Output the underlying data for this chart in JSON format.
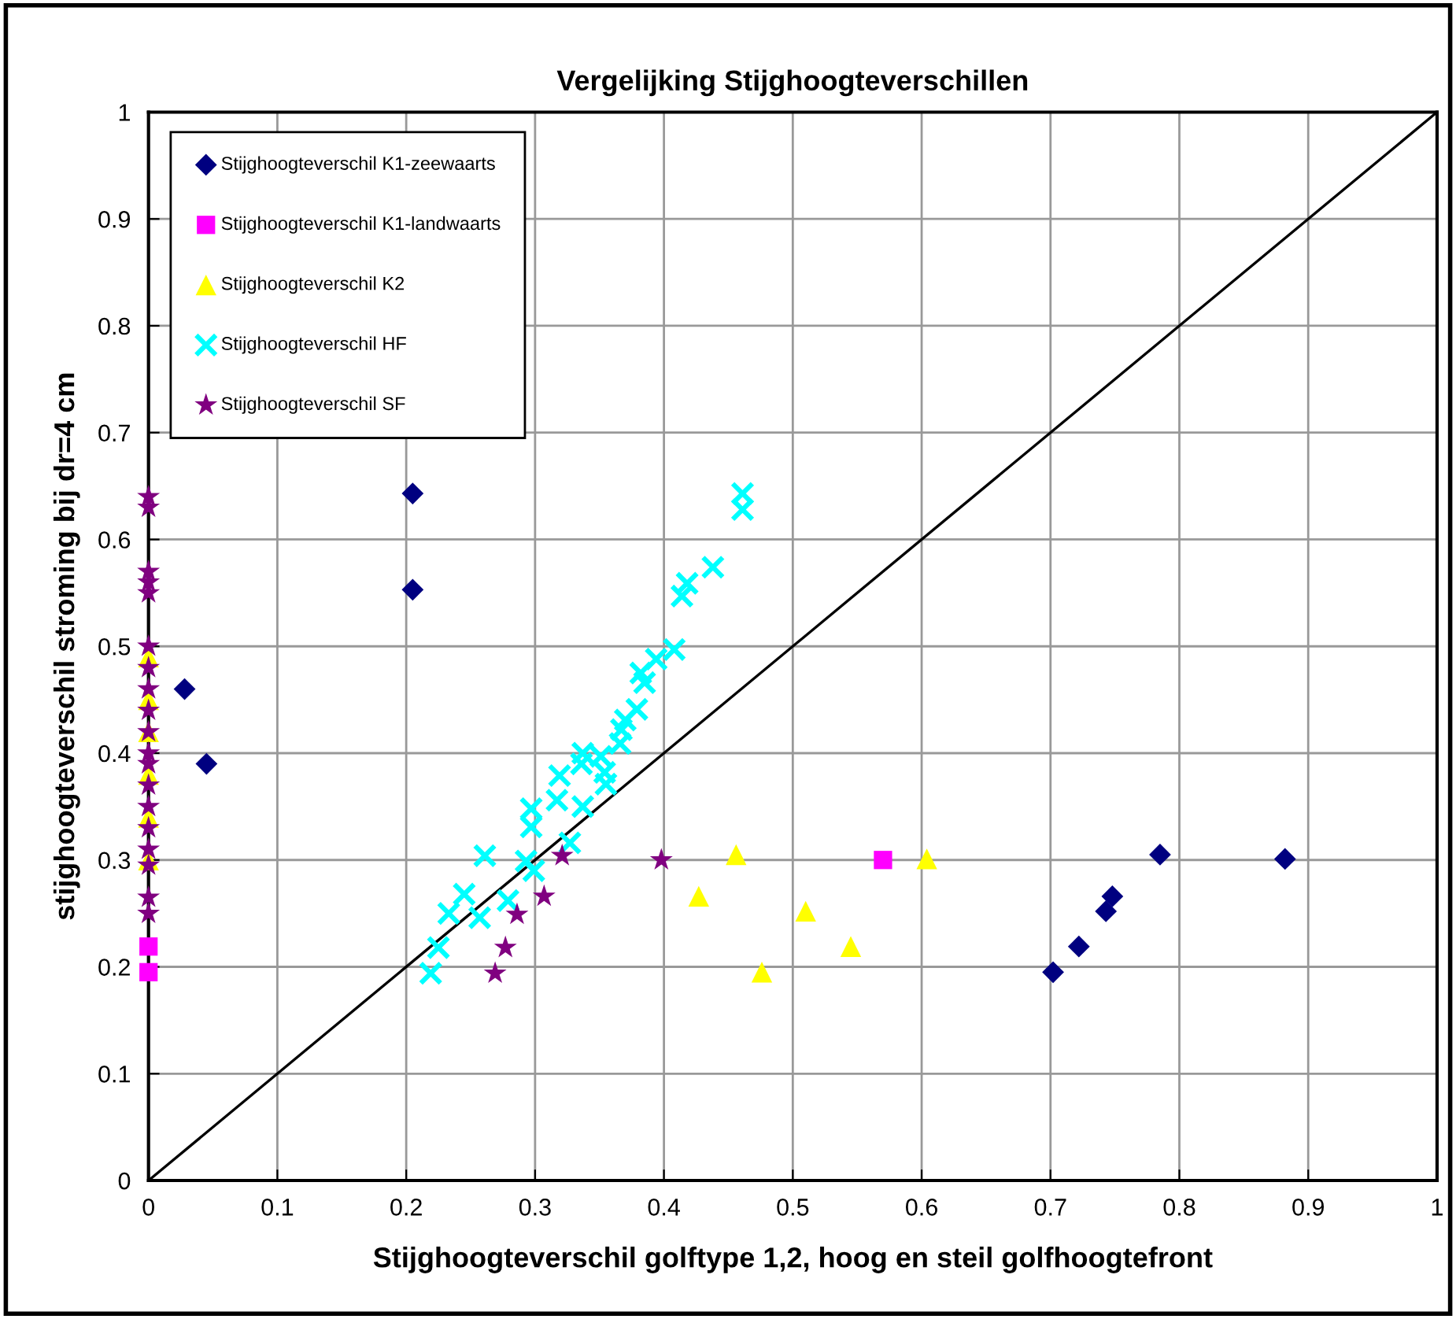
{
  "chart_data": {
    "type": "scatter",
    "title": "Vergelijking Stijghoogteverschillen",
    "xlabel": "Stijghoogteverschil golftype 1,2, hoog en steil golfhoogtefront",
    "ylabel": "stijghoogteverschil stroming bij dr=4 cm",
    "xlim": [
      0,
      1
    ],
    "ylim": [
      0,
      1
    ],
    "xticks": [
      0,
      0.1,
      0.2,
      0.3,
      0.4,
      0.5,
      0.6,
      0.7,
      0.8,
      0.9,
      1
    ],
    "yticks": [
      0,
      0.1,
      0.2,
      0.3,
      0.4,
      0.5,
      0.6,
      0.7,
      0.8,
      0.9,
      1
    ],
    "grid": true,
    "legend": "top left",
    "series": [
      {
        "name": "Stijghoogteverschil K1-zeewaarts",
        "color": "#000080",
        "marker": "diamond",
        "x": [
          0.205,
          0.205,
          0.028,
          0.045,
          0.702,
          0.722,
          0.743,
          0.748,
          0.785,
          0.882
        ],
        "values": [
          0.643,
          0.553,
          0.46,
          0.39,
          0.195,
          0.219,
          0.252,
          0.266,
          0.305,
          0.301
        ]
      },
      {
        "name": "Stijghoogteverschil K1-landwaarts",
        "color": "#ff00ff",
        "marker": "square",
        "x": [
          0.57,
          0,
          0
        ],
        "values": [
          0.3,
          0.195,
          0.219
        ]
      },
      {
        "name": "Stijghoogteverschil K2",
        "color": "#ffff00",
        "marker": "triangle",
        "x": [
          0.456,
          0.427,
          0.51,
          0.545,
          0.476,
          0.604,
          0,
          0,
          0,
          0,
          0,
          0
        ],
        "values": [
          0.305,
          0.266,
          0.252,
          0.219,
          0.195,
          0.301,
          0.3,
          0.34,
          0.38,
          0.42,
          0.45,
          0.49
        ]
      },
      {
        "name": "Stijghoogteverschil HF",
        "color": "#00ffff",
        "marker": "cross",
        "x": [
          0.461,
          0.461,
          0.438,
          0.418,
          0.414,
          0.408,
          0.394,
          0.382,
          0.385,
          0.379,
          0.37,
          0.367,
          0.366,
          0.351,
          0.337,
          0.336,
          0.354,
          0.355,
          0.319,
          0.317,
          0.337,
          0.297,
          0.297,
          0.327,
          0.261,
          0.293,
          0.299,
          0.245,
          0.233,
          0.279,
          0.257,
          0.225,
          0.219
        ],
        "values": [
          0.643,
          0.628,
          0.574,
          0.559,
          0.547,
          0.497,
          0.488,
          0.475,
          0.466,
          0.441,
          0.431,
          0.422,
          0.409,
          0.397,
          0.4,
          0.39,
          0.382,
          0.371,
          0.379,
          0.356,
          0.35,
          0.348,
          0.331,
          0.316,
          0.304,
          0.299,
          0.29,
          0.268,
          0.25,
          0.262,
          0.246,
          0.218,
          0.194
        ]
      },
      {
        "name": "Stijghoogteverschil SF",
        "color": "#800080",
        "marker": "star",
        "x": [
          0.321,
          0.398,
          0.307,
          0.286,
          0.277,
          0.269,
          0,
          0,
          0,
          0,
          0,
          0,
          0,
          0,
          0,
          0,
          0,
          0,
          0,
          0,
          0,
          0,
          0,
          0,
          0
        ],
        "values": [
          0.304,
          0.3,
          0.266,
          0.249,
          0.218,
          0.194,
          0.25,
          0.265,
          0.295,
          0.31,
          0.33,
          0.35,
          0.37,
          0.39,
          0.4,
          0.42,
          0.44,
          0.46,
          0.48,
          0.5,
          0.55,
          0.56,
          0.57,
          0.63,
          0.64
        ]
      },
      {
        "type": "line",
        "color": "#000000",
        "marker": "none",
        "line_style": "solid",
        "x": [
          0,
          1
        ],
        "values": [
          0,
          1
        ]
      }
    ]
  }
}
